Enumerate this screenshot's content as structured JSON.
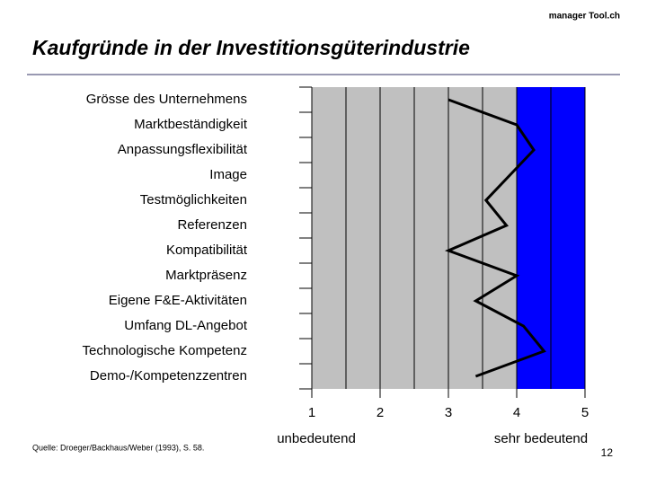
{
  "header": "manager Tool.ch",
  "footer": {
    "source": "Quelle: Droeger/Backhaus/Weber (1993), S. 58.",
    "page": "12"
  },
  "chart_data": {
    "type": "profile",
    "title": "Kaufgründe in der Investitionsgüterindustrie",
    "categories": [
      "Grösse des Unternehmens",
      "Marktbeständigkeit",
      "Anpassungsflexibilität",
      "Image",
      "Testmöglichkeiten",
      "Referenzen",
      "Kompatibilität",
      "Marktpräsenz",
      "Eigene F&E-Aktivitäten",
      "Umfang DL-Angebot",
      "Technologische Kompetenz",
      "Demo-/Kompetenzzentren"
    ],
    "values": [
      3.0,
      4.0,
      4.25,
      3.9,
      3.55,
      3.85,
      3.0,
      4.0,
      3.4,
      4.1,
      4.4,
      3.4
    ],
    "color": "#000000",
    "xlim": [
      1,
      5
    ],
    "xticks": [
      1,
      2,
      3,
      4,
      5
    ],
    "minor_xticks": [
      1.5,
      2.5,
      3.5,
      4.5
    ],
    "background": "#c0c0c0",
    "highlight": {
      "from": 4,
      "to": 5,
      "color": "#0000ff"
    },
    "annotations": {
      "low": "unbedeutend",
      "high": "sehr bedeutend"
    }
  }
}
